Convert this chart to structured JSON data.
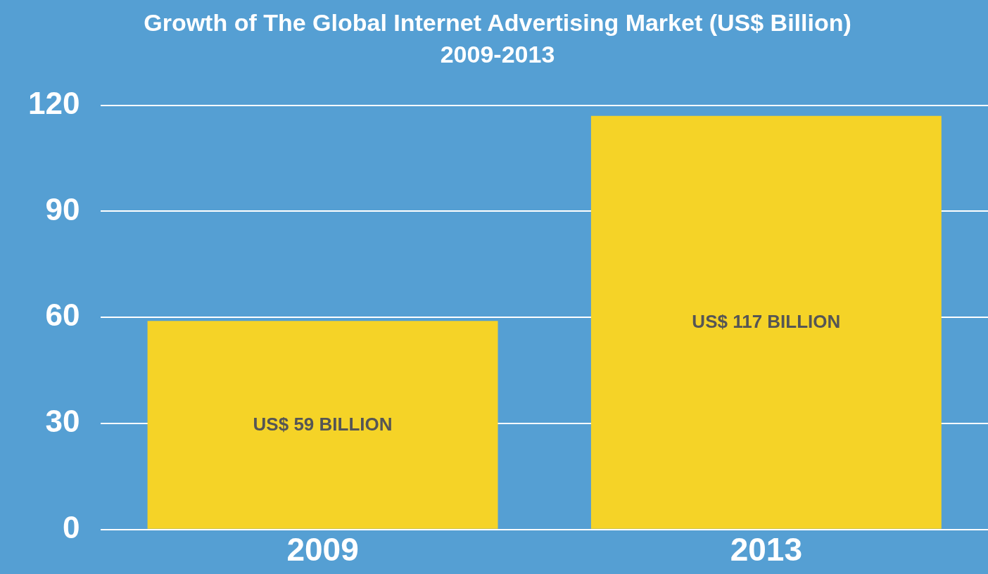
{
  "chart_data": {
    "type": "bar",
    "title": "Growth of The Global Internet Advertising Market (US$ Billion)",
    "subtitle": "2009-2013",
    "categories": [
      "2009",
      "2013"
    ],
    "values": [
      59,
      117
    ],
    "color": "#f5d327",
    "value_labels": [
      "US$ 59 BILLION",
      "US$ 117 BILLION"
    ],
    "ylim": [
      0,
      120
    ],
    "yticks": [
      0,
      30,
      60,
      90,
      120
    ],
    "grid": "y",
    "legend": false
  }
}
